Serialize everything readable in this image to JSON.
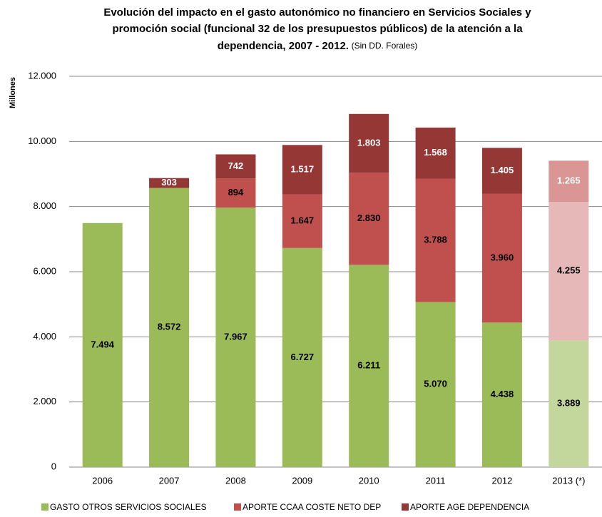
{
  "chart_data": {
    "type": "stacked_bar",
    "title": [
      "Evolución del impacto en el gasto autonómico no financiero en Servicios Sociales y",
      "promoción social (funcional 32 de los presupuestos públicos) de la atención a la",
      "dependencia, 2007 - 2012."
    ],
    "subtitle": "(Sin DD. Forales)",
    "y_label": "Millones",
    "categories": [
      "2006",
      "2007",
      "2008",
      "2009",
      "2010",
      "2011",
      "2012",
      "2013 (*)"
    ],
    "series": [
      {
        "name": "GASTO OTROS SERVICIOS  SOCIALES",
        "color": "#9bbb59",
        "colors": [
          "#9bbb59",
          "#9bbb59",
          "#9bbb59",
          "#9bbb59",
          "#9bbb59",
          "#9bbb59",
          "#9bbb59",
          "#c3d69b"
        ],
        "values": [
          7494,
          8572,
          7967,
          6727,
          6211,
          5070,
          4438,
          3889
        ],
        "value_labels": [
          "7.494",
          "8.572",
          "7.967",
          "6.727",
          "6.211",
          "5.070",
          "4.438",
          "3.889"
        ]
      },
      {
        "name": "APORTE CCAA COSTE NETO  DEP",
        "color": "#c0504d",
        "colors": [
          "#c0504d",
          "#c0504d",
          "#c0504d",
          "#c0504d",
          "#c0504d",
          "#c0504d",
          "#c0504d",
          "#e6b9b8"
        ],
        "values": [
          null,
          null,
          894,
          1647,
          2830,
          3788,
          3960,
          4255
        ],
        "value_labels": [
          null,
          null,
          "894",
          "1.647",
          "2.830",
          "3.788",
          "3.960",
          "4.255"
        ]
      },
      {
        "name": "APORTE AGE DEPENDENCIA",
        "color": "#953735",
        "colors": [
          "#953735",
          "#953735",
          "#953735",
          "#953735",
          "#953735",
          "#953735",
          "#953735",
          "#d99694"
        ],
        "values": [
          null,
          303,
          742,
          1517,
          1803,
          1568,
          1405,
          1265
        ],
        "value_labels": [
          null,
          "303",
          "742",
          "1.517",
          "1.803",
          "1.568",
          "1.405",
          "1.265"
        ]
      }
    ],
    "ylim": [
      0,
      12000
    ],
    "yticks": [
      0,
      {
        "value": 2000,
        "label": "2.000"
      },
      {
        "value": 4000,
        "label": "4.000"
      },
      {
        "value": 6000,
        "label": "6.000"
      },
      {
        "value": 8000,
        "label": "8.000"
      },
      {
        "value": 10000,
        "label": "10.000"
      },
      {
        "value": 12000,
        "label": "12.000"
      }
    ],
    "grid": true,
    "legend": "bottom"
  }
}
